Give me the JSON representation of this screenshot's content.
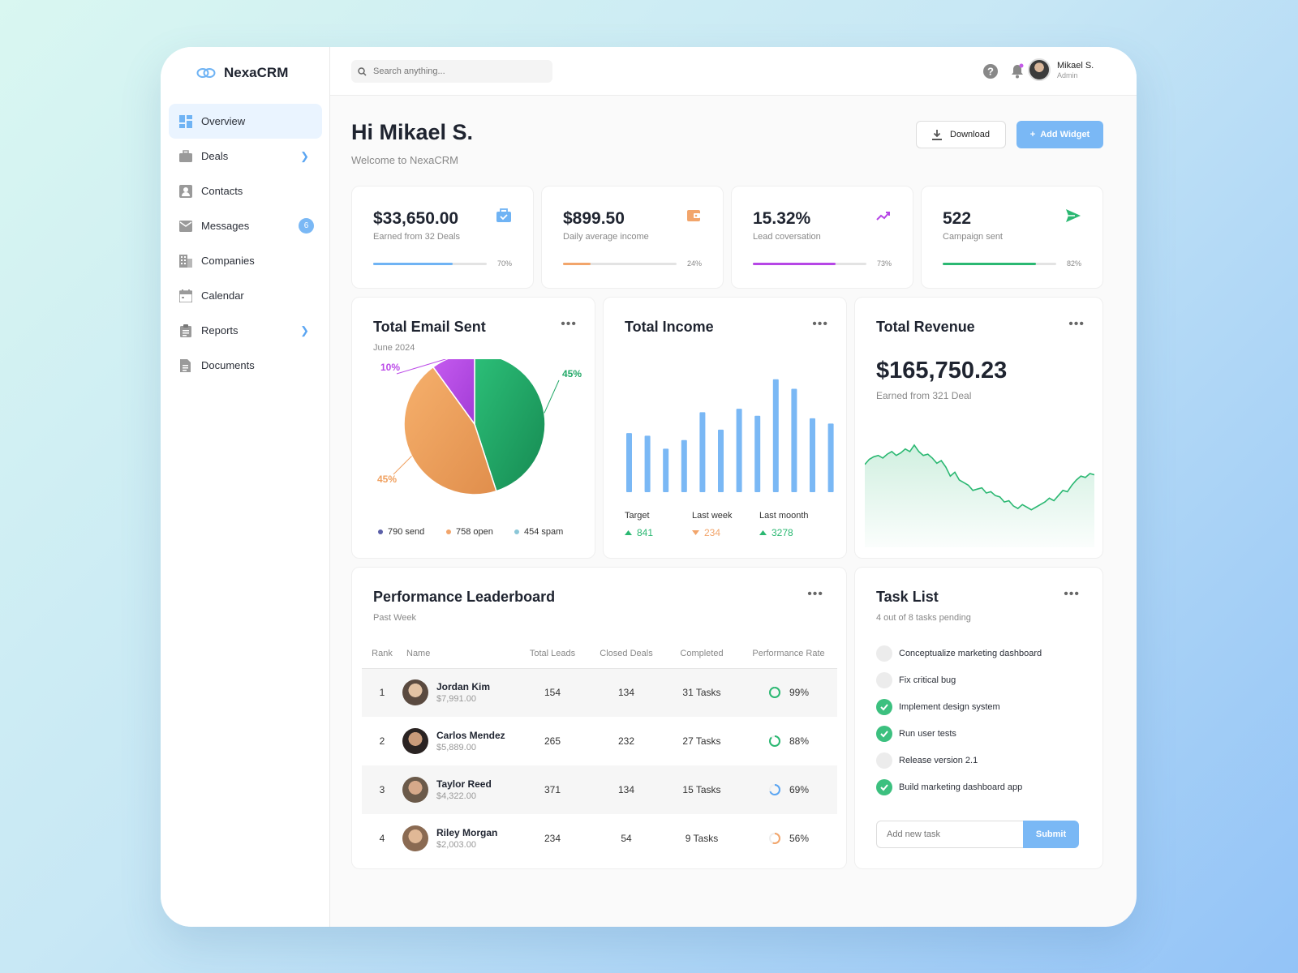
{
  "app": {
    "name": "NexaCRM"
  },
  "sidebar": {
    "items": [
      {
        "label": "Overview",
        "icon": "dashboard-icon"
      },
      {
        "label": "Deals",
        "icon": "briefcase-icon"
      },
      {
        "label": "Contacts",
        "icon": "contact-icon"
      },
      {
        "label": "Messages",
        "icon": "mail-icon",
        "badge": "6"
      },
      {
        "label": "Companies",
        "icon": "building-icon"
      },
      {
        "label": "Calendar",
        "icon": "calendar-icon"
      },
      {
        "label": "Reports",
        "icon": "clipboard-icon"
      },
      {
        "label": "Documents",
        "icon": "document-icon"
      }
    ]
  },
  "topbar": {
    "search_placeholder": "Search anything...",
    "user_name": "Mikael S.",
    "user_role": "Admin"
  },
  "header": {
    "greeting": "Hi Mikael S.",
    "welcome": "Welcome to NexaCRM",
    "download_label": "Download",
    "add_widget_label": "Add Widget"
  },
  "stats": [
    {
      "value": "$33,650.00",
      "label": "Earned from 32 Deals",
      "percent": 70,
      "percent_label": "70%",
      "color": "#6fb3f4",
      "icon": "briefcase-icon"
    },
    {
      "value": "$899.50",
      "label": "Daily average income",
      "percent": 24,
      "percent_label": "24%",
      "color": "#f2a56b",
      "icon": "wallet-icon"
    },
    {
      "value": "15.32%",
      "label": "Lead coversation",
      "percent": 73,
      "percent_label": "73%",
      "color": "#b646e6",
      "icon": "trend-up-icon"
    },
    {
      "value": "522",
      "label": "Campaign sent",
      "percent": 82,
      "percent_label": "82%",
      "color": "#2bb872",
      "icon": "send-icon"
    }
  ],
  "email_chart": {
    "title": "Total Email Sent",
    "subtitle": "June 2024",
    "legend": [
      {
        "label": "790 send",
        "color": "#5b5fa8"
      },
      {
        "label": "758 open",
        "color": "#f2a56b"
      },
      {
        "label": "454 spam",
        "color": "#8bc7d8"
      }
    ]
  },
  "income_chart": {
    "title": "Total Income",
    "summary": [
      {
        "label": "Target",
        "value": "841",
        "trend": "up",
        "color": "#2bb872"
      },
      {
        "label": "Last week",
        "value": "234",
        "trend": "down",
        "color": "#f2a56b"
      },
      {
        "label": "Last moonth",
        "value": "3278",
        "trend": "up",
        "color": "#2bb872"
      }
    ]
  },
  "revenue": {
    "title": "Total Revenue",
    "value": "$165,750.23",
    "subtitle": "Earned from 321 Deal"
  },
  "chart_data": [
    {
      "type": "pie",
      "categories": [
        "Green",
        "Orange",
        "Purple"
      ],
      "values": [
        45,
        45,
        10
      ],
      "labels": [
        "45%",
        "45%",
        "10%"
      ],
      "colors": [
        "#22a867",
        "#f0a05f",
        "#bb4ae8"
      ]
    },
    {
      "type": "bar",
      "values": [
        68,
        65,
        50,
        60,
        92,
        72,
        96,
        88,
        130,
        119,
        85,
        79
      ],
      "ylim": [
        0,
        140
      ],
      "colors": [
        "#7ab8f5"
      ]
    },
    {
      "type": "area",
      "values": [
        64,
        68,
        70,
        71,
        69,
        72,
        74,
        71,
        73,
        76,
        74,
        79,
        74,
        71,
        72,
        69,
        65,
        67,
        62,
        55,
        58,
        52,
        50,
        48,
        44,
        45,
        46,
        42,
        43,
        40,
        39,
        35,
        36,
        32,
        30,
        33,
        31,
        29,
        31,
        33,
        35,
        38,
        36,
        40,
        44,
        43,
        48,
        52,
        55,
        54,
        57,
        56
      ],
      "ylim": [
        0,
        100
      ],
      "colors": [
        "#2bb872"
      ]
    }
  ],
  "leaderboard": {
    "title": "Performance Leaderboard",
    "subtitle": "Past Week",
    "columns": [
      "Rank",
      "Name",
      "Total Leads",
      "Closed Deals",
      "Completed",
      "Performance Rate"
    ],
    "rows": [
      {
        "rank": "1",
        "name": "Jordan Kim",
        "amount": "$7,991.00",
        "leads": "154",
        "closed": "134",
        "completed": "31 Tasks",
        "rate": 99,
        "rate_label": "99%",
        "rate_color": "#2bb872"
      },
      {
        "rank": "2",
        "name": "Carlos Mendez",
        "amount": "$5,889.00",
        "leads": "265",
        "closed": "232",
        "completed": "27 Tasks",
        "rate": 88,
        "rate_label": "88%",
        "rate_color": "#2bb872"
      },
      {
        "rank": "3",
        "name": "Taylor Reed",
        "amount": "$4,322.00",
        "leads": "371",
        "closed": "134",
        "completed": "15 Tasks",
        "rate": 69,
        "rate_label": "69%",
        "rate_color": "#5aa5f2"
      },
      {
        "rank": "4",
        "name": "Riley Morgan",
        "amount": "$2,003.00",
        "leads": "234",
        "closed": "54",
        "completed": "9 Tasks",
        "rate": 56,
        "rate_label": "56%",
        "rate_color": "#f2a56b"
      }
    ]
  },
  "tasks": {
    "title": "Task List",
    "subtitle": "4 out of 8 tasks pending",
    "items": [
      {
        "label": "Conceptualize marketing dashboard",
        "done": false
      },
      {
        "label": "Fix critical bug",
        "done": false
      },
      {
        "label": "Implement design system",
        "done": true
      },
      {
        "label": "Run user tests",
        "done": true
      },
      {
        "label": "Release version 2.1",
        "done": false
      },
      {
        "label": "Build marketing dashboard app",
        "done": true
      }
    ],
    "input_placeholder": "Add new task",
    "submit_label": "Submit"
  }
}
